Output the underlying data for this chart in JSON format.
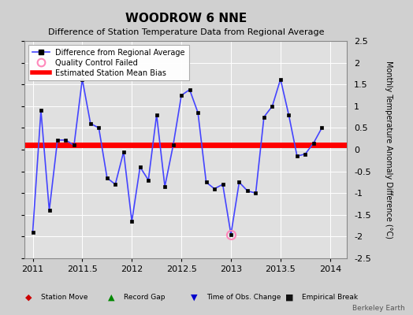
{
  "title": "WOODROW 6 NNE",
  "subtitle": "Difference of Station Temperature Data from Regional Average",
  "ylabel": "Monthly Temperature Anomaly Difference (°C)",
  "bias": 0.1,
  "xlim": [
    2010.92,
    2014.17
  ],
  "ylim": [
    -2.5,
    2.5
  ],
  "xticks": [
    2011,
    2011.5,
    2012,
    2012.5,
    2013,
    2013.5,
    2014
  ],
  "yticks": [
    -2.5,
    -2.0,
    -1.5,
    -1.0,
    -0.5,
    0.0,
    0.5,
    1.0,
    1.5,
    2.0,
    2.5
  ],
  "line_color": "#4444ff",
  "line_width": 1.2,
  "marker_color": "#000000",
  "marker_size": 3.5,
  "bias_color": "#ff0000",
  "bias_lw": 5,
  "qc_color": "#ff88bb",
  "plot_bg": "#e0e0e0",
  "fig_bg": "#d0d0d0",
  "watermark": "Berkeley Earth",
  "x": [
    2011.0,
    2011.083,
    2011.167,
    2011.25,
    2011.333,
    2011.417,
    2011.5,
    2011.583,
    2011.667,
    2011.75,
    2011.833,
    2011.917,
    2012.0,
    2012.083,
    2012.167,
    2012.25,
    2012.333,
    2012.417,
    2012.5,
    2012.583,
    2012.667,
    2012.75,
    2012.833,
    2012.917,
    2013.0,
    2013.083,
    2013.167,
    2013.25,
    2013.333,
    2013.417,
    2013.5,
    2013.583,
    2013.667,
    2013.75,
    2013.833,
    2013.917
  ],
  "y": [
    -1.9,
    0.9,
    -1.4,
    0.22,
    0.22,
    0.1,
    1.62,
    0.6,
    0.5,
    -0.65,
    -0.8,
    -0.05,
    -1.65,
    -0.4,
    -0.7,
    0.8,
    -0.85,
    0.1,
    1.25,
    1.38,
    0.85,
    -0.75,
    -0.9,
    -0.8,
    -1.95,
    -0.75,
    -0.95,
    -1.0,
    0.75,
    1.0,
    1.62,
    0.8,
    -0.15,
    -0.1,
    0.15,
    0.5
  ],
  "qc_failed_x": [
    2013.0
  ],
  "qc_failed_y": [
    -1.95
  ],
  "legend_entries": [
    "Difference from Regional Average",
    "Quality Control Failed",
    "Estimated Station Mean Bias"
  ],
  "bottom_legend": [
    {
      "marker": "D",
      "color": "#cc0000",
      "label": "Station Move"
    },
    {
      "marker": "^",
      "color": "#008800",
      "label": "Record Gap"
    },
    {
      "marker": "v",
      "color": "#0000cc",
      "label": "Time of Obs. Change"
    },
    {
      "marker": "s",
      "color": "#111111",
      "label": "Empirical Break"
    }
  ]
}
